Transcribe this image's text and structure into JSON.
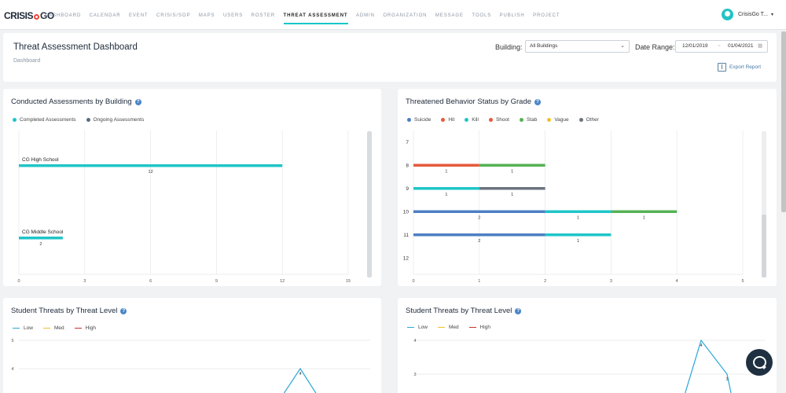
{
  "nav": {
    "logo_left": "CRISIS",
    "logo_right": "GO",
    "items": [
      "DASHBOARD",
      "CALENDAR",
      "EVENT",
      "CRISIS/SOP",
      "MAPS",
      "USERS",
      "ROSTER",
      "THREAT ASSESSMENT",
      "ADMIN",
      "ORGANIZATION",
      "MESSAGE",
      "TOOLS",
      "PUBLISH",
      "PROJECT"
    ],
    "active": "THREAT ASSESSMENT",
    "user_name": "CrisisGo T...",
    "user_caret": "▾"
  },
  "header": {
    "title": "Threat Assessment Dashboard",
    "breadcrumb": "Dashboard",
    "building_label": "Building:",
    "building_value": "All Buildings",
    "date_label": "Date Range:",
    "date_start": "12/01/2019",
    "date_sep": "~",
    "date_end": "01/04/2021",
    "export_label": "Export Report"
  },
  "colors": {
    "teal": "#1fc5c8",
    "slate": "#5b6b7b",
    "blue": "#4d7fc4",
    "red": "#e55a3c",
    "green": "#55b255",
    "yellow": "#f2c12e",
    "gray": "#6b7480",
    "darkred": "#c7332a"
  },
  "charts": {
    "conducted": {
      "title": "Conducted Assessments by Building",
      "legend": [
        {
          "name": "Completed Assessments",
          "color": "#1fc5c8"
        },
        {
          "name": "Ongoing Assessments",
          "color": "#5b6b7b"
        }
      ]
    },
    "threatened": {
      "title": "Threatened Behavior Status by Grade",
      "legend": [
        {
          "name": "Suicide",
          "color": "#4d7fc4"
        },
        {
          "name": "Hit",
          "color": "#e55a3c"
        },
        {
          "name": "Kill",
          "color": "#1fc5c8"
        },
        {
          "name": "Shoot",
          "color": "#e55a3c"
        },
        {
          "name": "Stab",
          "color": "#55b255"
        },
        {
          "name": "Vague",
          "color": "#f2c12e"
        },
        {
          "name": "Other",
          "color": "#6b7480"
        }
      ]
    },
    "level_left": {
      "title": "Student Threats by Threat Level",
      "legend": [
        {
          "name": "Low",
          "color": "#2aa8d8"
        },
        {
          "name": "Med",
          "color": "#f2c12e"
        },
        {
          "name": "High",
          "color": "#c7332a"
        }
      ]
    },
    "level_right": {
      "title": "Student Threats by Threat Level",
      "legend": [
        {
          "name": "Low",
          "color": "#2aa8d8"
        },
        {
          "name": "Med",
          "color": "#f2c12e"
        },
        {
          "name": "High",
          "color": "#c7332a"
        }
      ]
    }
  },
  "chart_data": [
    {
      "type": "bar",
      "orientation": "horizontal",
      "title": "Conducted Assessments by Building",
      "categories": [
        "CG High School",
        "CG Middle School"
      ],
      "series": [
        {
          "name": "Completed Assessments",
          "values": [
            12,
            2
          ]
        },
        {
          "name": "Ongoing Assessments",
          "values": [
            0,
            0
          ]
        }
      ],
      "xlim": [
        0,
        15
      ],
      "xticks": [
        0,
        3,
        6,
        9,
        12,
        15
      ],
      "legend": "top-left",
      "grid": true
    },
    {
      "type": "bar",
      "orientation": "horizontal",
      "stacked": true,
      "title": "Threatened Behavior Status by Grade",
      "categories": [
        "7",
        "8",
        "9",
        "10",
        "11",
        "12"
      ],
      "series": [
        {
          "name": "Suicide",
          "values": [
            0,
            0,
            0,
            2,
            2,
            0
          ]
        },
        {
          "name": "Hit",
          "values": [
            0,
            1,
            0,
            0,
            0,
            0
          ]
        },
        {
          "name": "Kill",
          "values": [
            0,
            0,
            1,
            1,
            1,
            0
          ]
        },
        {
          "name": "Shoot",
          "values": [
            0,
            0,
            0,
            0,
            0,
            0
          ]
        },
        {
          "name": "Stab",
          "values": [
            0,
            1,
            0,
            1,
            0,
            0
          ]
        },
        {
          "name": "Vague",
          "values": [
            0,
            0,
            0,
            0,
            0,
            0
          ]
        },
        {
          "name": "Other",
          "values": [
            0,
            0,
            1,
            0,
            0,
            0
          ]
        }
      ],
      "xlim": [
        0,
        5
      ],
      "xticks": [
        0,
        1,
        2,
        3,
        4,
        5
      ],
      "legend": "top-left",
      "grid": true
    },
    {
      "type": "line",
      "title": "Student Threats by Threat Level",
      "series": [
        {
          "name": "Low",
          "peak_label": "4",
          "peak_value": 4
        }
      ],
      "yticks": [
        5,
        4
      ],
      "legend": "top-left",
      "grid": true
    },
    {
      "type": "line",
      "title": "Student Threats by Threat Level",
      "series": [
        {
          "name": "Low",
          "peak_label": "4",
          "peak_value": 4,
          "next_label": "3",
          "next_value": 3
        }
      ],
      "yticks": [
        4,
        3
      ],
      "legend": "top-left",
      "grid": true
    }
  ]
}
